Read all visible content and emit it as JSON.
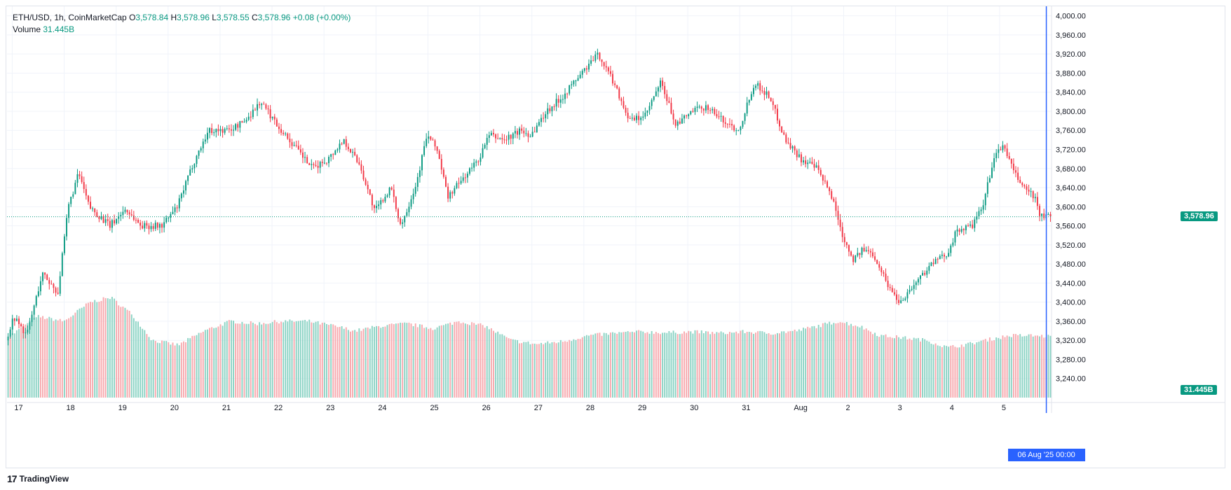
{
  "legend": {
    "symbol": "ETH/USD, 1h, CoinMarketCap",
    "o_label": "O",
    "o_value": "3,578.84",
    "h_label": "H",
    "h_value": "3,578.96",
    "l_label": "L",
    "l_value": "3,578.55",
    "c_label": "C",
    "c_value": "3,578.96",
    "change": "+0.08 (+0.00%)",
    "volume_label": "Volume",
    "volume_value": "31.445B"
  },
  "badges": {
    "last_price": "3,578.96",
    "last_volume": "31.445B",
    "crosshair_date": "06 Aug '25   00:00"
  },
  "brand": {
    "logo": "17",
    "name": "TradingView"
  },
  "colors": {
    "up": "#089981",
    "down": "#f23645",
    "up_volume": "#8bd3c4",
    "down_volume": "#f7a9ae",
    "grid": "#f0f3fa",
    "axis_text": "#131722",
    "crosshair": "#2962ff"
  },
  "chart_data": {
    "type": "candlestick",
    "title": "ETH/USD, 1h, CoinMarketCap",
    "price_axis": {
      "range": [
        3200,
        4020
      ],
      "ticks": [
        3240,
        3280,
        3320,
        3360,
        3400,
        3440,
        3480,
        3520,
        3560,
        3600,
        3640,
        3680,
        3720,
        3760,
        3800,
        3840,
        3880,
        3920,
        3960,
        4000
      ],
      "tick_labels": [
        "3,240.00",
        "3,280.00",
        "3,320.00",
        "3,360.00",
        "3,400.00",
        "3,440.00",
        "3,480.00",
        "3,520.00",
        "3,560.00",
        "3,600.00",
        "3,640.00",
        "3,680.00",
        "3,720.00",
        "3,760.00",
        "3,800.00",
        "3,840.00",
        "3,880.00",
        "3,920.00",
        "3,960.00",
        "4,000.00"
      ]
    },
    "time_axis": {
      "start_day": 16.9,
      "end_day": 37.0,
      "labels": [
        {
          "day": 17,
          "text": "17"
        },
        {
          "day": 18,
          "text": "18"
        },
        {
          "day": 19,
          "text": "19"
        },
        {
          "day": 20,
          "text": "20"
        },
        {
          "day": 21,
          "text": "21"
        },
        {
          "day": 22,
          "text": "22"
        },
        {
          "day": 23,
          "text": "23"
        },
        {
          "day": 24,
          "text": "24"
        },
        {
          "day": 25,
          "text": "25"
        },
        {
          "day": 26,
          "text": "26"
        },
        {
          "day": 27,
          "text": "27"
        },
        {
          "day": 28,
          "text": "28"
        },
        {
          "day": 29,
          "text": "29"
        },
        {
          "day": 30,
          "text": "30"
        },
        {
          "day": 31,
          "text": "31"
        },
        {
          "day": 32,
          "text": "Aug"
        },
        {
          "day": 33,
          "text": "2"
        },
        {
          "day": 34,
          "text": "3"
        },
        {
          "day": 35,
          "text": "4"
        },
        {
          "day": 36,
          "text": "5"
        }
      ]
    },
    "last_price": 3578.96,
    "crosshair_day": 36.9,
    "price_anchors": [
      [
        16.9,
        3320
      ],
      [
        17.05,
        3370
      ],
      [
        17.3,
        3330
      ],
      [
        17.6,
        3460
      ],
      [
        17.9,
        3420
      ],
      [
        18.1,
        3600
      ],
      [
        18.3,
        3670
      ],
      [
        18.5,
        3600
      ],
      [
        18.9,
        3560
      ],
      [
        19.2,
        3595
      ],
      [
        19.5,
        3560
      ],
      [
        19.9,
        3560
      ],
      [
        20.2,
        3600
      ],
      [
        20.5,
        3690
      ],
      [
        20.8,
        3760
      ],
      [
        21.2,
        3760
      ],
      [
        21.5,
        3780
      ],
      [
        21.8,
        3820
      ],
      [
        22.2,
        3760
      ],
      [
        22.5,
        3720
      ],
      [
        22.8,
        3680
      ],
      [
        23.1,
        3700
      ],
      [
        23.4,
        3740
      ],
      [
        23.7,
        3690
      ],
      [
        24.0,
        3590
      ],
      [
        24.3,
        3640
      ],
      [
        24.5,
        3560
      ],
      [
        24.8,
        3650
      ],
      [
        25.0,
        3750
      ],
      [
        25.2,
        3720
      ],
      [
        25.4,
        3620
      ],
      [
        25.7,
        3660
      ],
      [
        26.0,
        3700
      ],
      [
        26.2,
        3750
      ],
      [
        26.5,
        3740
      ],
      [
        26.8,
        3760
      ],
      [
        27.0,
        3750
      ],
      [
        27.3,
        3800
      ],
      [
        27.6,
        3830
      ],
      [
        27.9,
        3870
      ],
      [
        28.3,
        3920
      ],
      [
        28.6,
        3860
      ],
      [
        28.9,
        3780
      ],
      [
        29.2,
        3790
      ],
      [
        29.5,
        3860
      ],
      [
        29.8,
        3770
      ],
      [
        30.1,
        3800
      ],
      [
        30.4,
        3810
      ],
      [
        30.7,
        3780
      ],
      [
        31.0,
        3760
      ],
      [
        31.3,
        3860
      ],
      [
        31.6,
        3830
      ],
      [
        31.9,
        3740
      ],
      [
        32.2,
        3700
      ],
      [
        32.5,
        3680
      ],
      [
        32.8,
        3620
      ],
      [
        33.0,
        3540
      ],
      [
        33.2,
        3490
      ],
      [
        33.4,
        3510
      ],
      [
        33.6,
        3500
      ],
      [
        33.9,
        3430
      ],
      [
        34.1,
        3400
      ],
      [
        34.4,
        3440
      ],
      [
        34.7,
        3480
      ],
      [
        35.0,
        3500
      ],
      [
        35.2,
        3550
      ],
      [
        35.5,
        3560
      ],
      [
        35.7,
        3600
      ],
      [
        35.9,
        3700
      ],
      [
        36.1,
        3730
      ],
      [
        36.3,
        3670
      ],
      [
        36.5,
        3640
      ],
      [
        36.7,
        3620
      ],
      [
        36.8,
        3580
      ],
      [
        37.0,
        3579
      ]
    ],
    "volume_anchors": [
      [
        16.9,
        3325
      ],
      [
        17.5,
        3370
      ],
      [
        18.0,
        3360
      ],
      [
        18.5,
        3400
      ],
      [
        18.9,
        3410
      ],
      [
        19.3,
        3375
      ],
      [
        19.7,
        3320
      ],
      [
        20.2,
        3310
      ],
      [
        20.7,
        3340
      ],
      [
        21.2,
        3360
      ],
      [
        21.7,
        3355
      ],
      [
        22.2,
        3360
      ],
      [
        22.7,
        3360
      ],
      [
        23.2,
        3350
      ],
      [
        23.6,
        3340
      ],
      [
        24.1,
        3350
      ],
      [
        24.6,
        3355
      ],
      [
        25.1,
        3345
      ],
      [
        25.6,
        3360
      ],
      [
        26.1,
        3350
      ],
      [
        26.6,
        3320
      ],
      [
        27.1,
        3312
      ],
      [
        27.6,
        3318
      ],
      [
        28.1,
        3330
      ],
      [
        28.6,
        3335
      ],
      [
        29.1,
        3338
      ],
      [
        29.6,
        3336
      ],
      [
        30.1,
        3338
      ],
      [
        30.6,
        3335
      ],
      [
        31.1,
        3338
      ],
      [
        31.6,
        3335
      ],
      [
        32.1,
        3340
      ],
      [
        32.5,
        3350
      ],
      [
        32.9,
        3360
      ],
      [
        33.3,
        3350
      ],
      [
        33.7,
        3330
      ],
      [
        34.2,
        3325
      ],
      [
        34.6,
        3320
      ],
      [
        35.0,
        3305
      ],
      [
        35.4,
        3312
      ],
      [
        35.8,
        3322
      ],
      [
        36.2,
        3330
      ],
      [
        36.6,
        3330
      ],
      [
        37.0,
        3328
      ]
    ]
  }
}
